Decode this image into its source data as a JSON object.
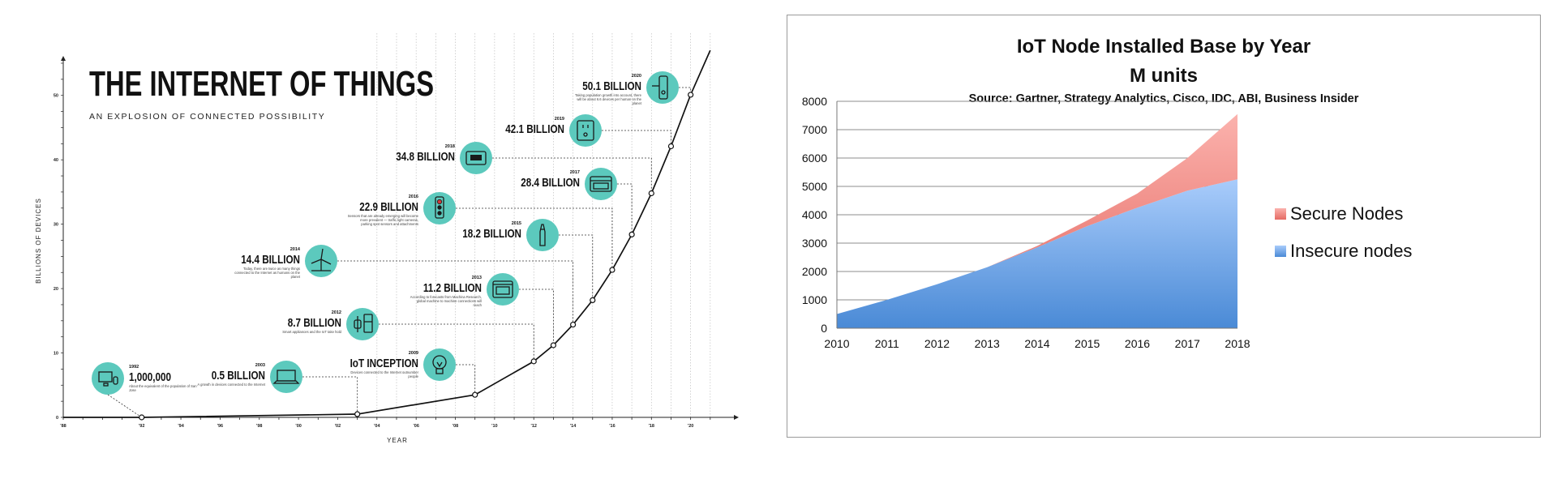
{
  "chart_data": [
    {
      "type": "line",
      "title": "THE INTERNET OF THINGS",
      "subtitle": "AN EXPLOSION OF CONNECTED POSSIBILITY",
      "xlabel": "YEAR",
      "ylabel": "BILLIONS OF DEVICES",
      "xlim": [
        1988,
        2022
      ],
      "ylim": [
        0,
        55
      ],
      "x_ticks": [
        "'88",
        "'92",
        "'94",
        "'96",
        "'98",
        "'00",
        "'02",
        "'04",
        "'06",
        "'08",
        "'10",
        "'12",
        "'14",
        "'16",
        "'18",
        "'20"
      ],
      "x_tick_values": [
        1988,
        1992,
        1994,
        1996,
        1998,
        2000,
        2002,
        2004,
        2006,
        2008,
        2010,
        2012,
        2014,
        2016,
        2018,
        2020
      ],
      "y_ticks": [
        0,
        10,
        20,
        30,
        40,
        50
      ],
      "series": [
        {
          "x": [
            1988,
            1992,
            2003,
            2009,
            2012,
            2013,
            2014,
            2015,
            2016,
            2017,
            2018,
            2019,
            2020,
            2021
          ],
          "y": [
            0,
            0.001,
            0.5,
            3.5,
            8.7,
            11.2,
            14.4,
            18.2,
            22.9,
            28.4,
            34.8,
            42.1,
            50.1,
            57
          ]
        }
      ],
      "annotations": [
        {
          "year": "1992",
          "label": "1,000,000",
          "note": "About the equivalent of the population of San Jose",
          "icon": "computer-icon",
          "x": 1992,
          "y": 0.001
        },
        {
          "year": "2003",
          "label": "0.5 BILLION",
          "note": "A growth in devices connected to the Internet",
          "icon": "laptop-icon",
          "x": 2003,
          "y": 0.5
        },
        {
          "year": "2009",
          "label": "IoT INCEPTION",
          "note": "Devices connected to the Internet outnumber people",
          "icon": "lightbulb-icon",
          "x": 2009,
          "y": 3.5
        },
        {
          "year": "2012",
          "label": "8.7 BILLION",
          "note": "Smart appliances and the IoT take hold",
          "icon": "watch-icon",
          "x": 2012,
          "y": 8.7
        },
        {
          "year": "2013",
          "label": "11.2 BILLION",
          "note": "According to forecasts from Machina Research, global machine to machine connections will reach",
          "icon": "oven-icon",
          "x": 2013,
          "y": 11.2
        },
        {
          "year": "2014",
          "label": "14.4 BILLION",
          "note": "Today, there are twice as many things connected to the Internet as humans on the planet",
          "icon": "wind-turbine-icon",
          "x": 2014,
          "y": 14.4
        },
        {
          "year": "2015",
          "label": "18.2 BILLION",
          "note": "",
          "icon": "toothbrush-icon",
          "x": 2015,
          "y": 18.2
        },
        {
          "year": "2016",
          "label": "22.9 BILLION",
          "note": "Sensors that are already emerging will become more prevalent — traffic light cameras, parking spot sensors and attachments",
          "icon": "traffic-light-icon",
          "x": 2016,
          "y": 22.9
        },
        {
          "year": "2017",
          "label": "28.4 BILLION",
          "note": "",
          "icon": "dishwasher-icon",
          "x": 2017,
          "y": 28.4
        },
        {
          "year": "2018",
          "label": "34.8 BILLION",
          "note": "",
          "icon": "thermostat-icon",
          "x": 2018,
          "y": 34.8
        },
        {
          "year": "2019",
          "label": "42.1 BILLION",
          "note": "",
          "icon": "outlet-icon",
          "x": 2019,
          "y": 42.1
        },
        {
          "year": "2020",
          "label": "50.1 BILLION",
          "note": "Taking population growth into account, there will be about 6.6 devices per human on the planet",
          "icon": "door-lock-icon",
          "x": 2020,
          "y": 50.1
        }
      ]
    },
    {
      "type": "area",
      "title": "IoT Node Installed Base by Year",
      "subtitle": "M units",
      "source": "Source: Gartner, Strategy Analytics, Cisco, IDC, ABI, Business Insider",
      "categories": [
        "2010",
        "2011",
        "2012",
        "2013",
        "2014",
        "2015",
        "2016",
        "2017",
        "2018"
      ],
      "ylim": [
        0,
        8000
      ],
      "y_ticks": [
        0,
        1000,
        2000,
        3000,
        4000,
        5000,
        6000,
        7000,
        8000
      ],
      "grid": true,
      "legend_position": "right",
      "series": [
        {
          "name": "Insecure nodes",
          "values": [
            500,
            1000,
            1550,
            2150,
            2850,
            3600,
            4250,
            4850,
            5250
          ],
          "color": "#5b9be0"
        },
        {
          "name": "Secure Nodes",
          "values": [
            0,
            0,
            0,
            0,
            50,
            200,
            500,
            1150,
            2300
          ],
          "color": "#f28a85"
        }
      ]
    }
  ]
}
